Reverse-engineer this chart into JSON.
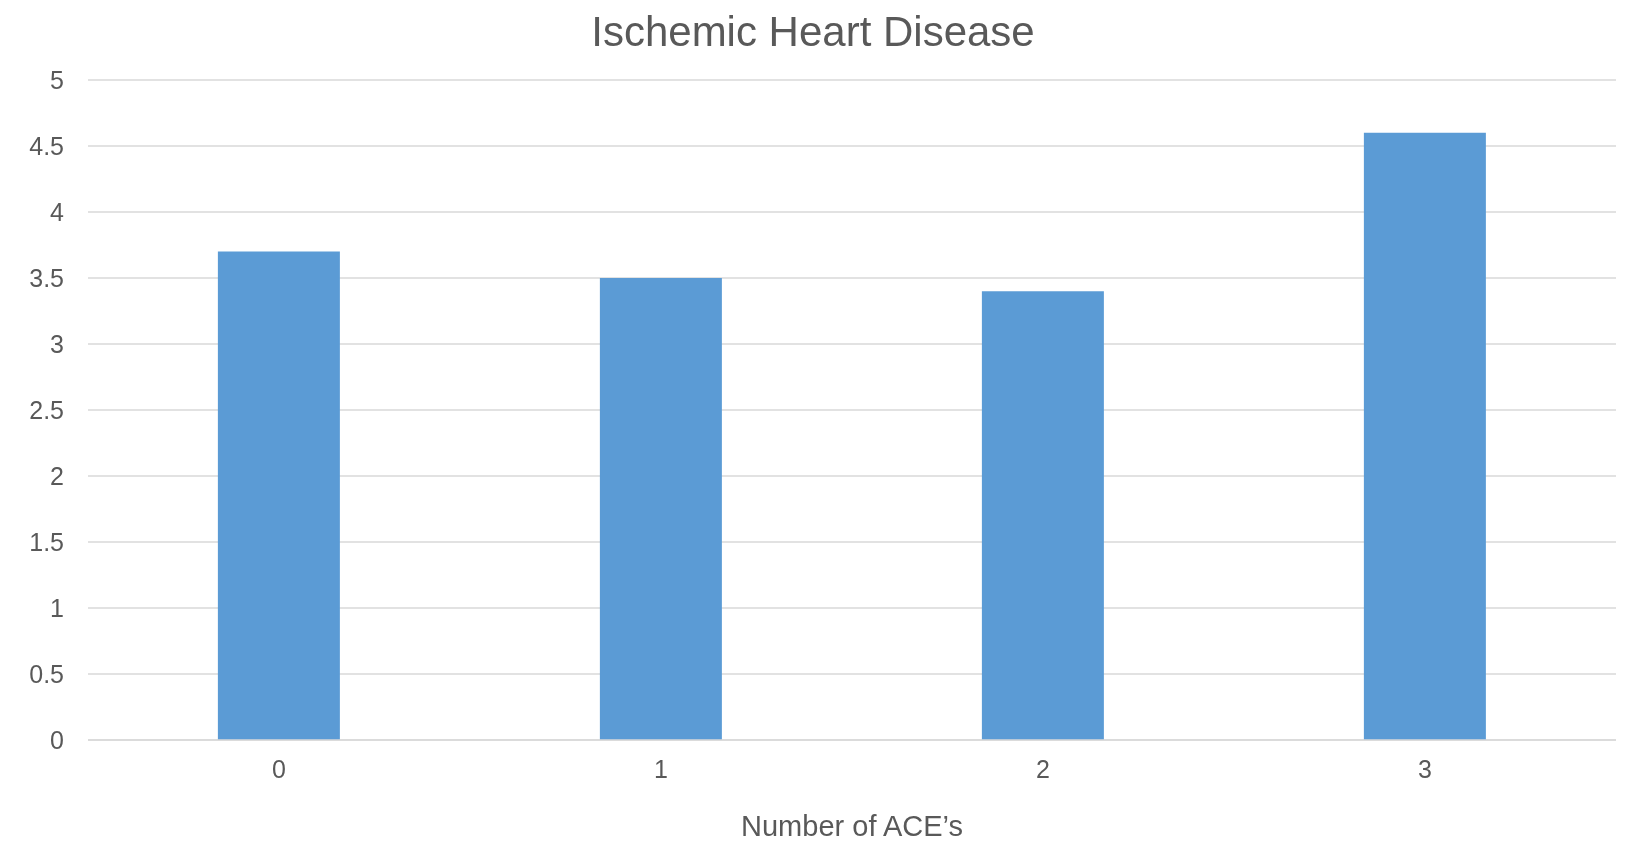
{
  "chart_data": {
    "type": "bar",
    "title": "Ischemic Heart Disease",
    "xlabel": "Number of ACE’s",
    "categories": [
      "0",
      "1",
      "2",
      "3"
    ],
    "series": [
      {
        "color": "#5b9bd5",
        "values": [
          3.7,
          3.5,
          3.4,
          4.6
        ]
      }
    ],
    "ylim": [
      0,
      5
    ],
    "yticks": [
      0,
      0.5,
      1,
      1.5,
      2,
      2.5,
      3,
      3.5,
      4,
      4.5,
      5
    ],
    "grid": "y",
    "legend": false
  }
}
